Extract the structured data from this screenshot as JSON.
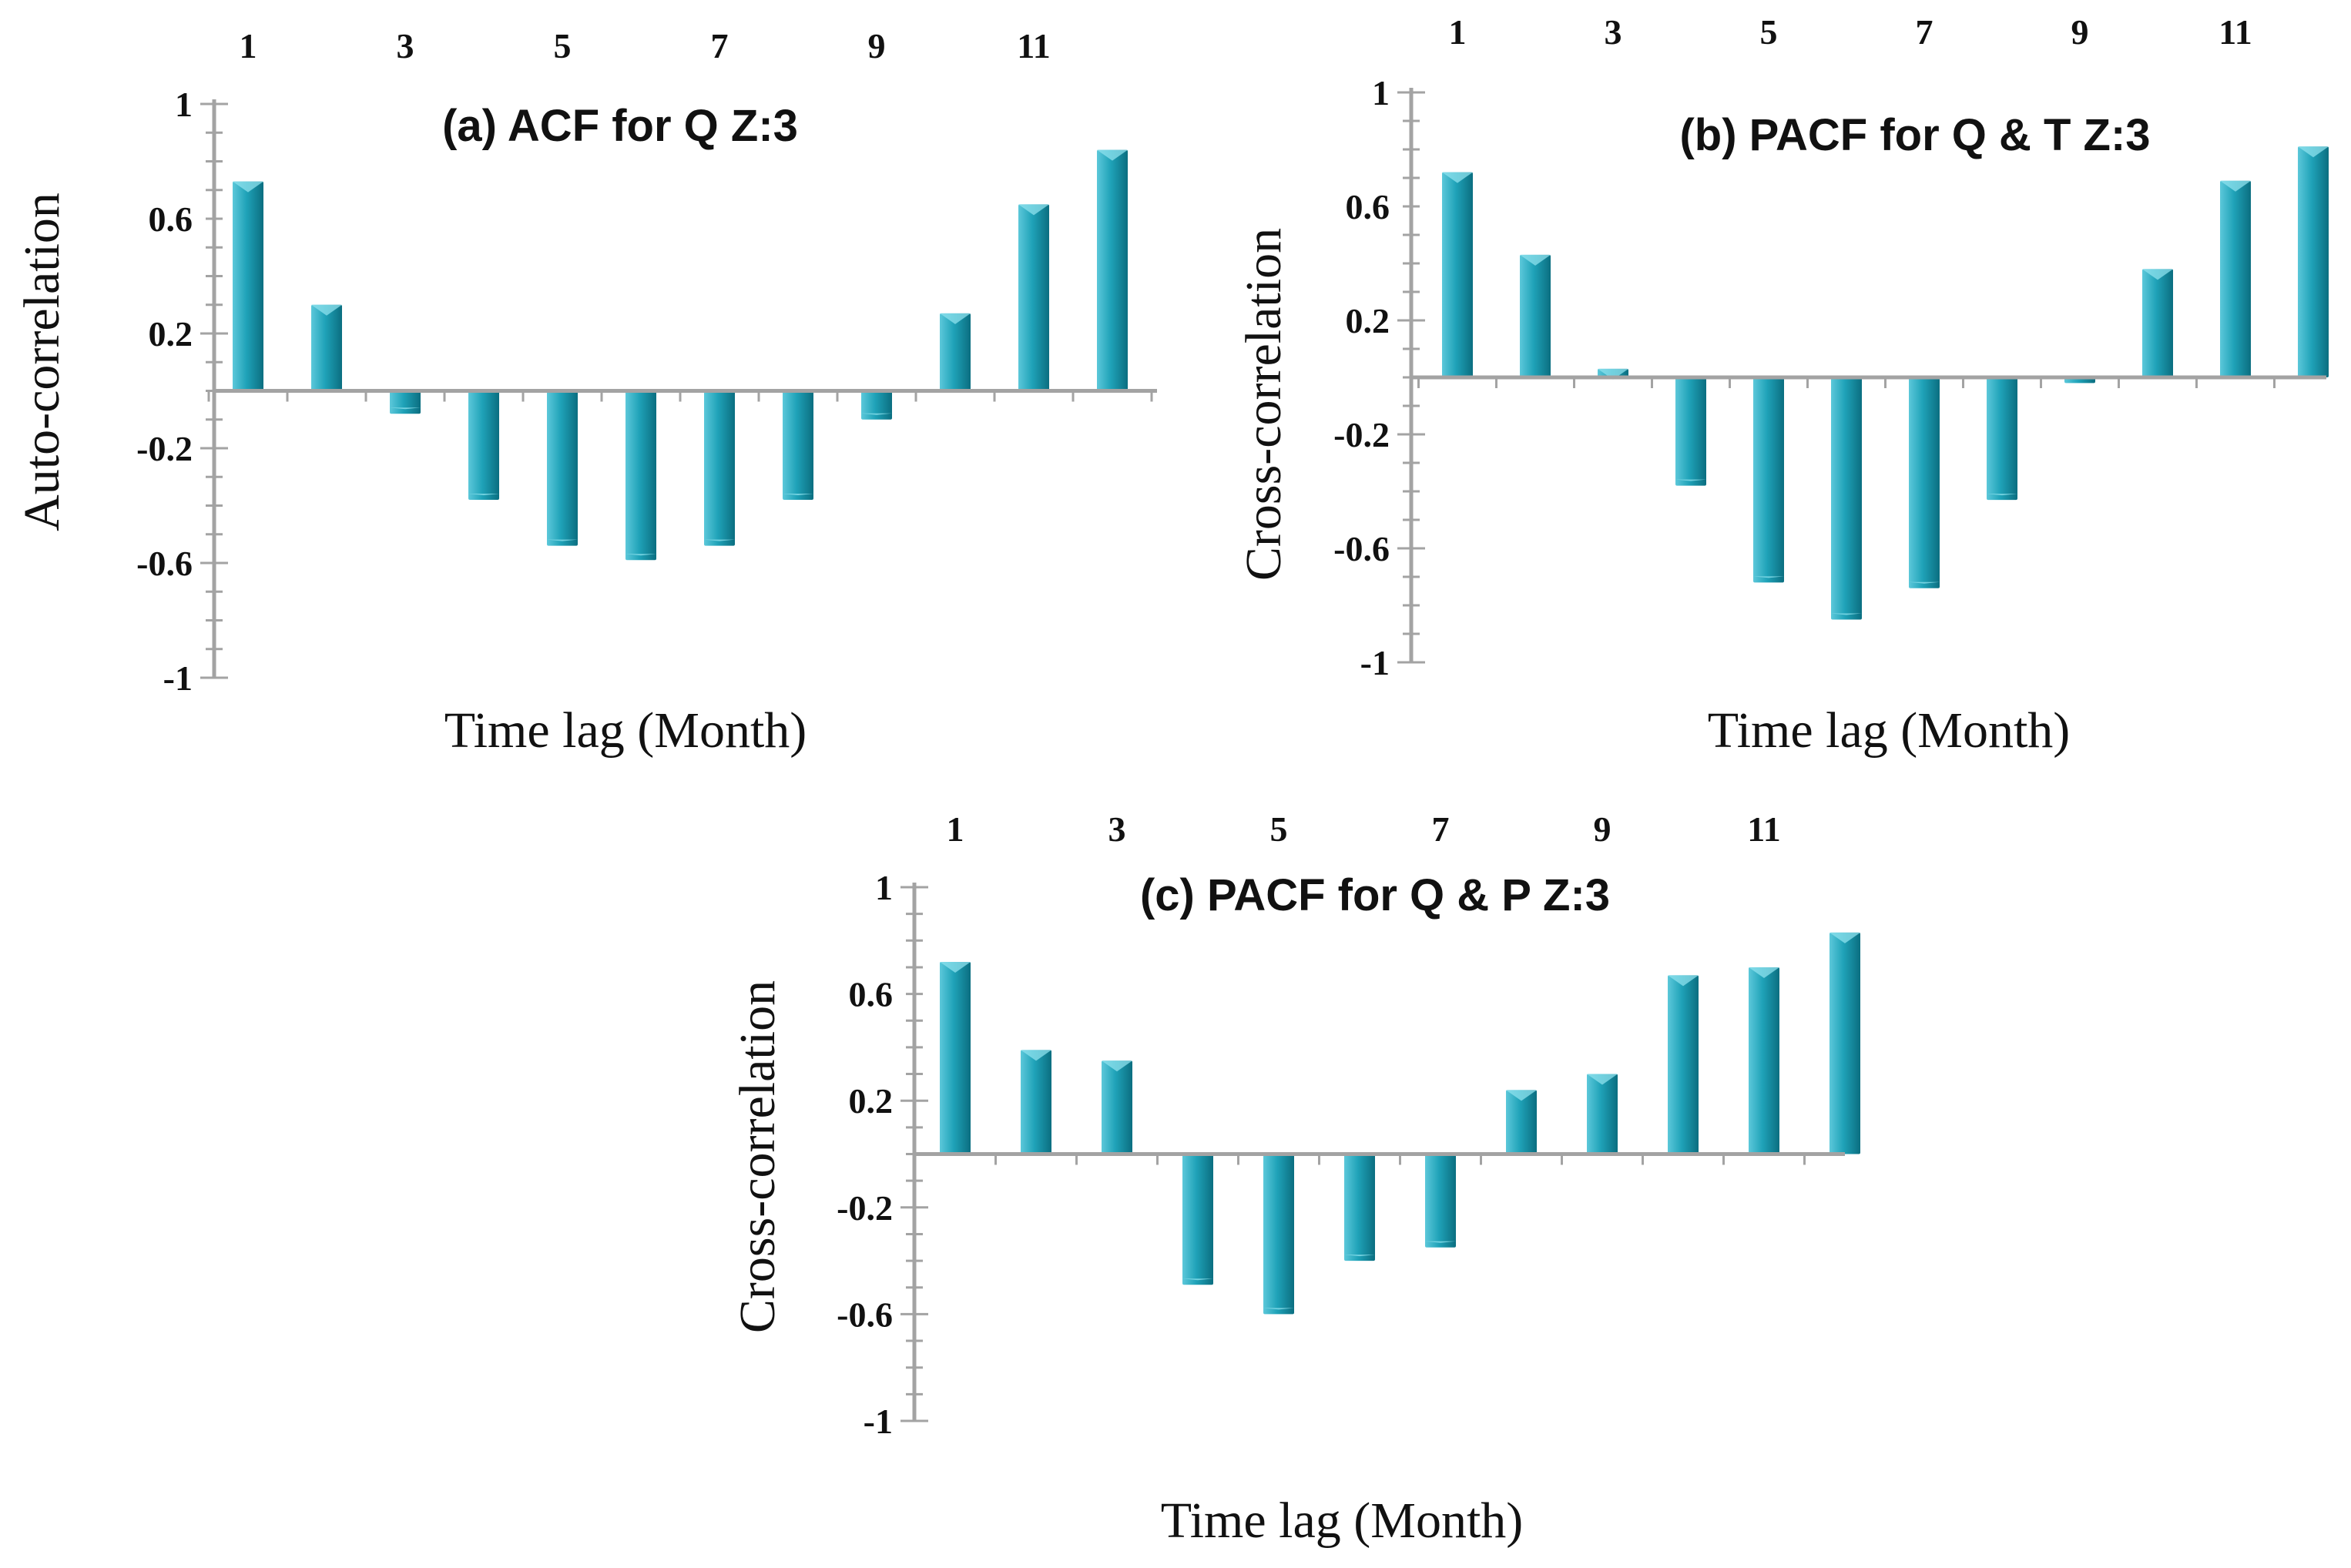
{
  "colors": {
    "bar_light": "#5cc8da",
    "bar_mid": "#1fa2b8",
    "bar_dark": "#0b6e80",
    "axis": "#a3a3a3"
  },
  "chart_data": [
    {
      "type": "bar",
      "title": "(a) ACF for Q Z:3",
      "xlabel": "Time lag (Month)",
      "ylabel": "Auto-correlation",
      "categories": [
        1,
        2,
        3,
        4,
        5,
        6,
        7,
        8,
        9,
        10,
        11,
        12
      ],
      "x_tick_labels": [
        "1",
        "3",
        "5",
        "7",
        "9",
        "11"
      ],
      "values": [
        0.73,
        0.3,
        -0.08,
        -0.38,
        -0.54,
        -0.59,
        -0.54,
        -0.38,
        -0.1,
        0.27,
        0.65,
        0.84
      ],
      "ylim": [
        -1,
        1
      ],
      "y_ticks": [
        1,
        0.6,
        0.2,
        -0.2,
        -0.6,
        -1
      ],
      "y_tick_labels": [
        "1",
        "0.6",
        "0.2",
        "-0.2",
        "-0.6",
        "-1"
      ],
      "x_tick_labels_position": "top",
      "grid": false,
      "legend": "none"
    },
    {
      "type": "bar",
      "title": "(b) PACF for Q & T Z:3",
      "xlabel": "Time lag (Month)",
      "ylabel": "Cross-correlation",
      "categories": [
        1,
        2,
        3,
        4,
        5,
        6,
        7,
        8,
        9,
        10,
        11,
        12
      ],
      "x_tick_labels": [
        "1",
        "3",
        "5",
        "7",
        "9",
        "11"
      ],
      "values": [
        0.72,
        0.43,
        0.03,
        -0.38,
        -0.72,
        -0.85,
        -0.74,
        -0.43,
        -0.02,
        0.38,
        0.69,
        0.81
      ],
      "ylim": [
        -1,
        1
      ],
      "y_ticks": [
        1,
        0.6,
        0.2,
        -0.2,
        -0.6,
        -1
      ],
      "y_tick_labels": [
        "1",
        "0.6",
        "0.2",
        "-0.2",
        "-0.6",
        "-1"
      ],
      "x_tick_labels_position": "top",
      "grid": false,
      "legend": "none"
    },
    {
      "type": "bar",
      "title": "(c) PACF for Q & P Z:3",
      "xlabel": "Time lag (Month)",
      "ylabel": "Cross-correlation",
      "categories": [
        1,
        2,
        3,
        4,
        5,
        6,
        7,
        8,
        9,
        10,
        11,
        12
      ],
      "x_tick_labels": [
        "1",
        "3",
        "5",
        "7",
        "9",
        "11"
      ],
      "values": [
        0.72,
        0.39,
        0.35,
        -0.49,
        -0.6,
        -0.4,
        -0.35,
        0.24,
        0.3,
        0.67,
        0.7,
        0.83
      ],
      "ylim": [
        -1,
        1
      ],
      "y_ticks": [
        1,
        0.6,
        0.2,
        -0.2,
        -0.6,
        -1
      ],
      "y_tick_labels": [
        "1",
        "0.6",
        "0.2",
        "-0.2",
        "-0.6",
        "-1"
      ],
      "x_tick_labels_position": "top",
      "grid": false,
      "legend": "none"
    }
  ]
}
